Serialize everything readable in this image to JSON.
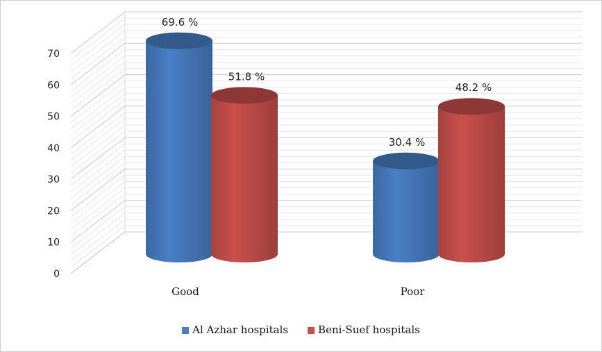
{
  "chart_data": {
    "type": "bar",
    "style": "3d-cylinder",
    "title": "",
    "xlabel": "",
    "ylabel": "",
    "categories": [
      "Good",
      "Poor"
    ],
    "ylim": [
      0,
      70
    ],
    "yticks": [
      "0",
      "10",
      "20",
      "30",
      "40",
      "50",
      "60",
      "70"
    ],
    "grid": true,
    "legend_position": "bottom",
    "series": [
      {
        "name": "Al Azhar hospitals",
        "color": "#4a7fc6",
        "values": [
          69.6,
          30.4
        ],
        "labels": [
          "69.6 %",
          "30.4 %"
        ]
      },
      {
        "name": "Beni-Suef hospitals",
        "color": "#c9504d",
        "values": [
          51.8,
          48.2
        ],
        "labels": [
          "51.8 %",
          "48.2 %"
        ]
      }
    ]
  }
}
